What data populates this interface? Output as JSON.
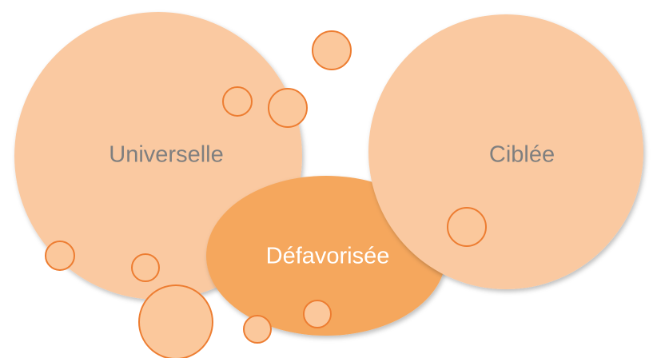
{
  "nodes": [
    {
      "label": "Universelle"
    },
    {
      "label": "Ciblée"
    },
    {
      "label": "Défavorisée"
    }
  ]
}
